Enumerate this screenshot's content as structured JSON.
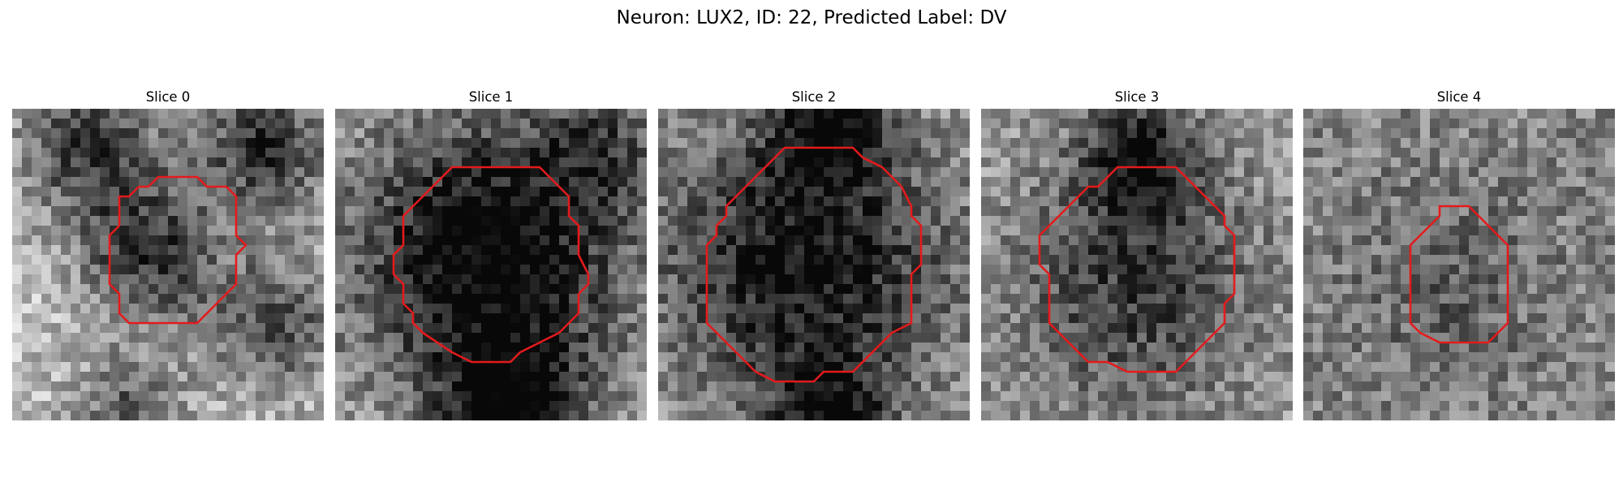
{
  "figure": {
    "title": "Neuron: LUX2, ID: 22, Predicted Label: DV",
    "contour_color": "#e41a1c",
    "colormap": "grayscale",
    "grid_size": 32,
    "slices": [
      {
        "title": "Slice 0",
        "seed": 11,
        "blobs": [
          [
            8,
            4,
            5,
            0.55
          ],
          [
            26,
            4,
            5,
            0.55
          ],
          [
            14,
            15,
            5,
            0.55
          ],
          [
            27,
            22,
            5,
            0.45
          ],
          [
            12,
            31,
            4,
            0.4
          ]
        ],
        "base": 0.75,
        "contour": [
          [
            15,
            7
          ],
          [
            19,
            7
          ],
          [
            20,
            8
          ],
          [
            22,
            8
          ],
          [
            23,
            9
          ],
          [
            23,
            13
          ],
          [
            24,
            14
          ],
          [
            23,
            15
          ],
          [
            23,
            18
          ],
          [
            19,
            22
          ],
          [
            12,
            22
          ],
          [
            11,
            21
          ],
          [
            11,
            19
          ],
          [
            10,
            18
          ],
          [
            10,
            13
          ],
          [
            11,
            12
          ],
          [
            11,
            9
          ],
          [
            12,
            9
          ],
          [
            13,
            8
          ],
          [
            14,
            8
          ]
        ]
      },
      {
        "title": "Slice 1",
        "seed": 23,
        "blobs": [
          [
            16,
            15,
            10,
            0.7
          ],
          [
            18,
            31,
            5,
            0.6
          ],
          [
            27,
            4,
            4,
            0.3
          ]
        ],
        "base": 0.65,
        "contour": [
          [
            12,
            6
          ],
          [
            21,
            6
          ],
          [
            23,
            8
          ],
          [
            24,
            9
          ],
          [
            24,
            11
          ],
          [
            25,
            12
          ],
          [
            25,
            15
          ],
          [
            26,
            17
          ],
          [
            26,
            18
          ],
          [
            25,
            19
          ],
          [
            25,
            21
          ],
          [
            24,
            22
          ],
          [
            23,
            23
          ],
          [
            21,
            24
          ],
          [
            19,
            25
          ],
          [
            18,
            26
          ],
          [
            14,
            26
          ],
          [
            12,
            25
          ],
          [
            9,
            23
          ],
          [
            8,
            22
          ],
          [
            8,
            21
          ],
          [
            7,
            20
          ],
          [
            7,
            18
          ],
          [
            6,
            17
          ],
          [
            6,
            15
          ],
          [
            7,
            14
          ],
          [
            7,
            11
          ],
          [
            8,
            10
          ],
          [
            9,
            9
          ],
          [
            10,
            8
          ],
          [
            11,
            7
          ]
        ]
      },
      {
        "title": "Slice 2",
        "seed": 37,
        "blobs": [
          [
            15,
            16,
            11,
            0.6
          ],
          [
            18,
            32,
            4,
            0.5
          ],
          [
            18,
            2,
            4,
            0.5
          ]
        ],
        "base": 0.65,
        "contour": [
          [
            13,
            4
          ],
          [
            20,
            4
          ],
          [
            21,
            5
          ],
          [
            23,
            6
          ],
          [
            24,
            7
          ],
          [
            25,
            8
          ],
          [
            26,
            10
          ],
          [
            26,
            11
          ],
          [
            27,
            12
          ],
          [
            27,
            16
          ],
          [
            26,
            17
          ],
          [
            26,
            22
          ],
          [
            24,
            23
          ],
          [
            23,
            24
          ],
          [
            22,
            25
          ],
          [
            21,
            26
          ],
          [
            20,
            27
          ],
          [
            17,
            27
          ],
          [
            16,
            28
          ],
          [
            12,
            28
          ],
          [
            10,
            27
          ],
          [
            9,
            26
          ],
          [
            8,
            25
          ],
          [
            7,
            24
          ],
          [
            6,
            23
          ],
          [
            5,
            22
          ],
          [
            5,
            14
          ],
          [
            6,
            13
          ],
          [
            6,
            12
          ],
          [
            7,
            11
          ],
          [
            7,
            10
          ],
          [
            8,
            9
          ],
          [
            9,
            8
          ],
          [
            10,
            7
          ],
          [
            11,
            6
          ],
          [
            12,
            5
          ]
        ]
      },
      {
        "title": "Slice 3",
        "seed": 53,
        "blobs": [
          [
            16,
            18,
            9,
            0.4
          ],
          [
            16,
            5,
            4,
            0.5
          ]
        ],
        "base": 0.62,
        "contour": [
          [
            14,
            6
          ],
          [
            20,
            6
          ],
          [
            21,
            7
          ],
          [
            22,
            8
          ],
          [
            23,
            9
          ],
          [
            24,
            10
          ],
          [
            25,
            11
          ],
          [
            25,
            12
          ],
          [
            26,
            13
          ],
          [
            26,
            19
          ],
          [
            25,
            20
          ],
          [
            25,
            22
          ],
          [
            24,
            23
          ],
          [
            23,
            24
          ],
          [
            22,
            25
          ],
          [
            21,
            26
          ],
          [
            20,
            27
          ],
          [
            15,
            27
          ],
          [
            13,
            26
          ],
          [
            11,
            26
          ],
          [
            10,
            25
          ],
          [
            9,
            24
          ],
          [
            8,
            23
          ],
          [
            7,
            22
          ],
          [
            7,
            17
          ],
          [
            6,
            16
          ],
          [
            6,
            13
          ],
          [
            7,
            12
          ],
          [
            8,
            11
          ],
          [
            9,
            10
          ],
          [
            10,
            9
          ],
          [
            11,
            8
          ],
          [
            12,
            8
          ],
          [
            13,
            7
          ]
        ]
      },
      {
        "title": "Slice 4",
        "seed": 71,
        "blobs": [
          [
            15,
            18,
            7,
            0.15
          ]
        ],
        "base": 0.52,
        "contour": [
          [
            14,
            10
          ],
          [
            17,
            10
          ],
          [
            18,
            11
          ],
          [
            19,
            12
          ],
          [
            20,
            13
          ],
          [
            21,
            14
          ],
          [
            21,
            22
          ],
          [
            20,
            23
          ],
          [
            19,
            24
          ],
          [
            14,
            24
          ],
          [
            12,
            23
          ],
          [
            11,
            22
          ],
          [
            11,
            14
          ],
          [
            12,
            13
          ],
          [
            13,
            12
          ],
          [
            14,
            11
          ]
        ]
      }
    ]
  }
}
